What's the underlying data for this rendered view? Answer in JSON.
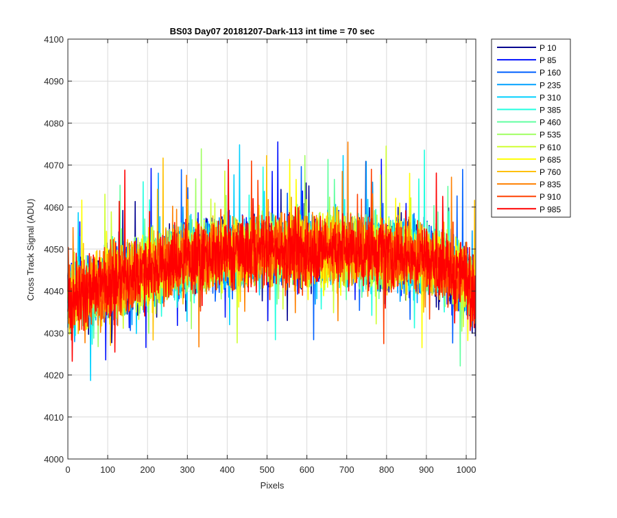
{
  "chart_data": {
    "type": "line",
    "title": "BS03 Day07 20181207-Dark-113 int time = 70 sec",
    "xlabel": "Pixels",
    "ylabel": "Cross Track Signal (ADU)",
    "xlim": [
      0,
      1024
    ],
    "ylim": [
      4000,
      4100
    ],
    "xticks": [
      "0",
      "100",
      "200",
      "300",
      "400",
      "500",
      "600",
      "700",
      "800",
      "900",
      "1000"
    ],
    "yticks": [
      "4000",
      "4010",
      "4020",
      "4030",
      "4040",
      "4050",
      "4060",
      "4070",
      "4080",
      "4090",
      "4100"
    ],
    "grid": true,
    "legend_position": "outside-top-right",
    "series_shape": "noisy dark-frame signal per pixel; mean rises from about 4038 at pixel 0 to about 4050 near pixel 500 and falls back to about 4040 at pixel 1024; fluctuation about +/-12 ADU with spikes up to 4095 and down to 4004",
    "series": [
      {
        "name": "P 10",
        "color": "#00008f",
        "x": [
          0,
          100,
          200,
          300,
          400,
          500,
          600,
          700,
          800,
          900,
          1000,
          1023
        ],
        "values": [
          4038,
          4042,
          4045,
          4048,
          4049,
          4050,
          4050,
          4050,
          4049,
          4048,
          4043,
          4040
        ]
      },
      {
        "name": "P 85",
        "color": "#0010ff",
        "x": [
          0,
          100,
          200,
          300,
          400,
          500,
          600,
          700,
          800,
          900,
          1000,
          1023
        ],
        "values": [
          4038,
          4042,
          4045,
          4048,
          4049,
          4050,
          4050,
          4050,
          4049,
          4048,
          4043,
          4040
        ]
      },
      {
        "name": "P 160",
        "color": "#0060ff",
        "x": [
          0,
          100,
          200,
          300,
          400,
          500,
          600,
          700,
          800,
          900,
          1000,
          1023
        ],
        "values": [
          4038,
          4042,
          4045,
          4048,
          4049,
          4050,
          4050,
          4050,
          4049,
          4048,
          4043,
          4040
        ]
      },
      {
        "name": "P 235",
        "color": "#00a0ff",
        "x": [
          0,
          100,
          200,
          300,
          400,
          500,
          600,
          700,
          800,
          900,
          1000,
          1023
        ],
        "values": [
          4038,
          4042,
          4045,
          4048,
          4049,
          4050,
          4050,
          4050,
          4049,
          4048,
          4043,
          4040
        ]
      },
      {
        "name": "P 310",
        "color": "#00d0ff",
        "x": [
          0,
          100,
          200,
          300,
          400,
          500,
          600,
          700,
          800,
          900,
          1000,
          1023
        ],
        "values": [
          4038,
          4042,
          4045,
          4048,
          4049,
          4050,
          4050,
          4050,
          4049,
          4048,
          4043,
          4040
        ]
      },
      {
        "name": "P 385",
        "color": "#20ffdf",
        "x": [
          0,
          100,
          200,
          300,
          400,
          500,
          600,
          700,
          800,
          900,
          1000,
          1023
        ],
        "values": [
          4038,
          4042,
          4045,
          4048,
          4049,
          4050,
          4050,
          4050,
          4049,
          4048,
          4043,
          4040
        ]
      },
      {
        "name": "P 460",
        "color": "#60ffa0",
        "x": [
          0,
          100,
          200,
          300,
          400,
          500,
          600,
          700,
          800,
          900,
          1000,
          1023
        ],
        "values": [
          4038,
          4042,
          4045,
          4048,
          4049,
          4050,
          4050,
          4050,
          4049,
          4048,
          4043,
          4040
        ]
      },
      {
        "name": "P 535",
        "color": "#9fff60",
        "x": [
          0,
          100,
          200,
          300,
          400,
          500,
          600,
          700,
          800,
          900,
          1000,
          1023
        ],
        "values": [
          4038,
          4042,
          4045,
          4048,
          4049,
          4050,
          4050,
          4050,
          4049,
          4048,
          4043,
          4040
        ]
      },
      {
        "name": "P 610",
        "color": "#cfff30",
        "x": [
          0,
          100,
          200,
          300,
          400,
          500,
          600,
          700,
          800,
          900,
          1000,
          1023
        ],
        "values": [
          4038,
          4042,
          4045,
          4048,
          4049,
          4050,
          4050,
          4050,
          4049,
          4048,
          4043,
          4040
        ]
      },
      {
        "name": "P 685",
        "color": "#ffff00",
        "x": [
          0,
          100,
          200,
          300,
          400,
          500,
          600,
          700,
          800,
          900,
          1000,
          1023
        ],
        "values": [
          4038,
          4042,
          4045,
          4048,
          4049,
          4050,
          4050,
          4050,
          4049,
          4048,
          4043,
          4040
        ]
      },
      {
        "name": "P 760",
        "color": "#ffc000",
        "x": [
          0,
          100,
          200,
          300,
          400,
          500,
          600,
          700,
          800,
          900,
          1000,
          1023
        ],
        "values": [
          4038,
          4042,
          4045,
          4048,
          4049,
          4050,
          4050,
          4050,
          4049,
          4048,
          4043,
          4040
        ]
      },
      {
        "name": "P 835",
        "color": "#ff8000",
        "x": [
          0,
          100,
          200,
          300,
          400,
          500,
          600,
          700,
          800,
          900,
          1000,
          1023
        ],
        "values": [
          4038,
          4042,
          4045,
          4048,
          4049,
          4050,
          4050,
          4050,
          4049,
          4048,
          4043,
          4040
        ]
      },
      {
        "name": "P 910",
        "color": "#ff4000",
        "x": [
          0,
          100,
          200,
          300,
          400,
          500,
          600,
          700,
          800,
          900,
          1000,
          1023
        ],
        "values": [
          4038,
          4042,
          4045,
          4048,
          4049,
          4050,
          4050,
          4050,
          4049,
          4048,
          4043,
          4040
        ]
      },
      {
        "name": "P 985",
        "color": "#ff0000",
        "x": [
          0,
          100,
          200,
          300,
          400,
          500,
          600,
          700,
          800,
          900,
          1000,
          1023
        ],
        "values": [
          4038,
          4042,
          4045,
          4048,
          4049,
          4050,
          4050,
          4050,
          4049,
          4048,
          4043,
          4040
        ]
      }
    ]
  }
}
